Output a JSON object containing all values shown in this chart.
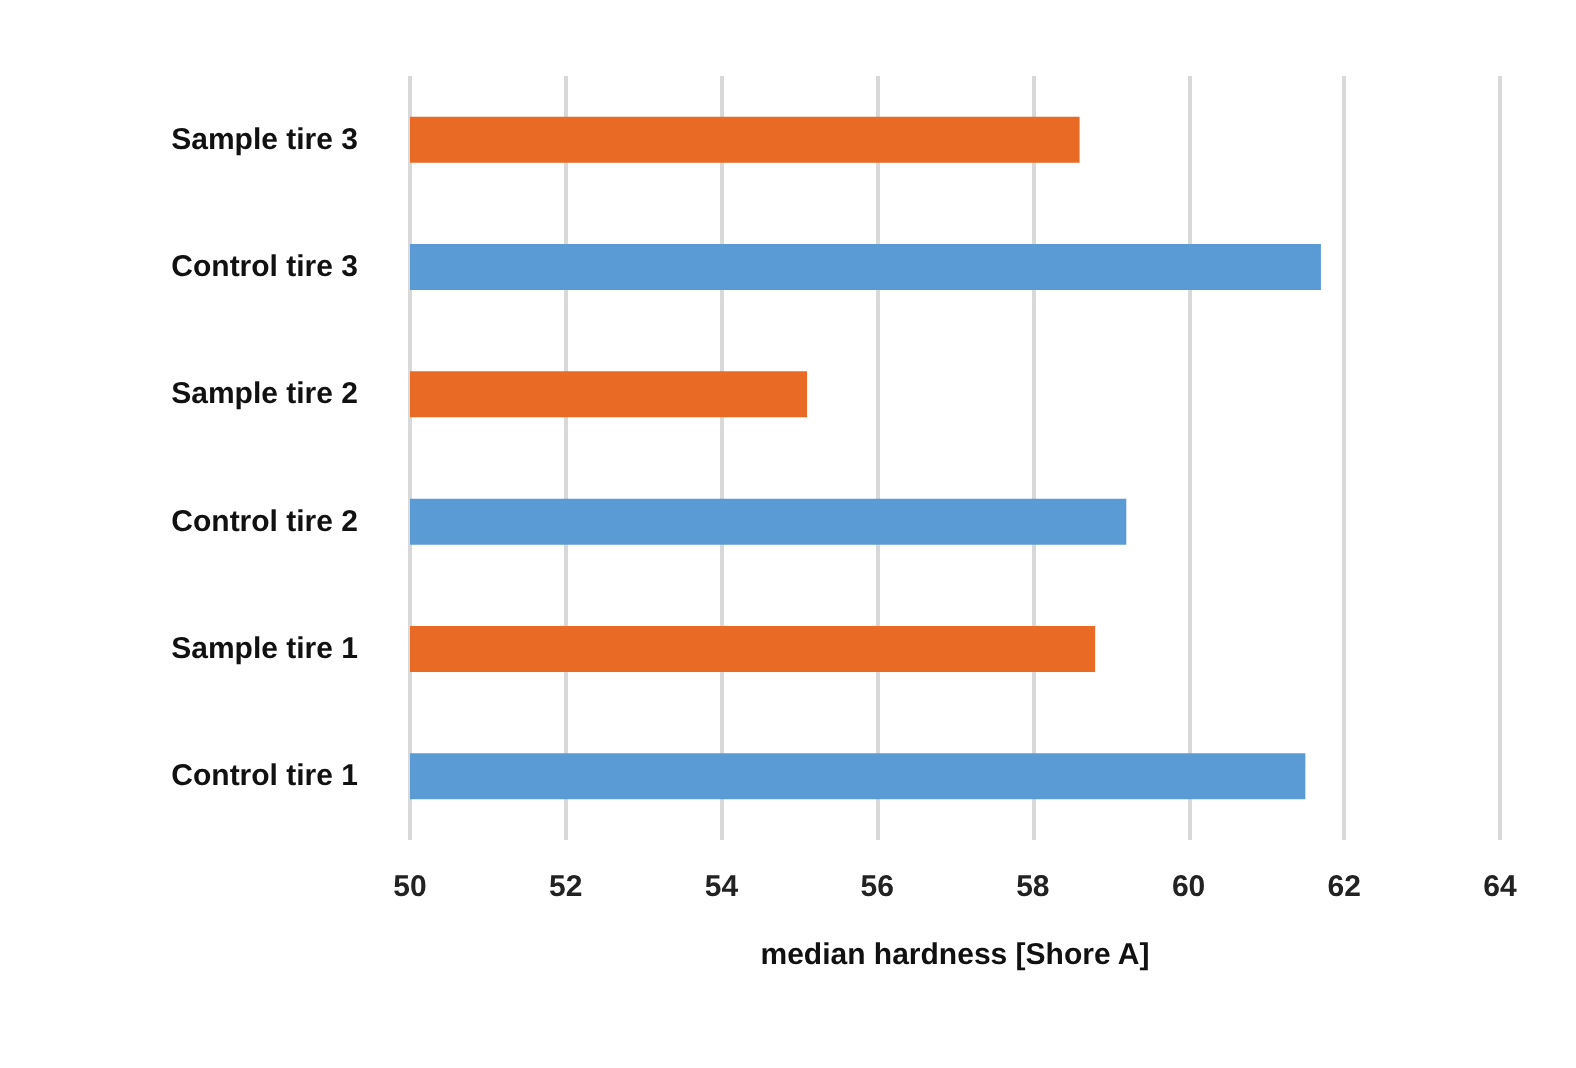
{
  "chart_data": {
    "type": "bar",
    "orientation": "horizontal",
    "xlabel": "median hardness [Shore A]",
    "categories": [
      "Sample tire 3",
      "Control tire 3",
      "Sample tire 2",
      "Control tire 2",
      "Sample tire 1",
      "Control tire 1"
    ],
    "values": [
      58.6,
      61.7,
      55.1,
      59.2,
      58.8,
      61.5
    ],
    "colors": [
      "#e86a25",
      "#5b9bd5",
      "#e86a25",
      "#5b9bd5",
      "#e86a25",
      "#5b9bd5"
    ],
    "xlim": [
      50,
      64
    ],
    "xticks": [
      50,
      52,
      54,
      56,
      58,
      60,
      62,
      64
    ],
    "grid": "x"
  }
}
